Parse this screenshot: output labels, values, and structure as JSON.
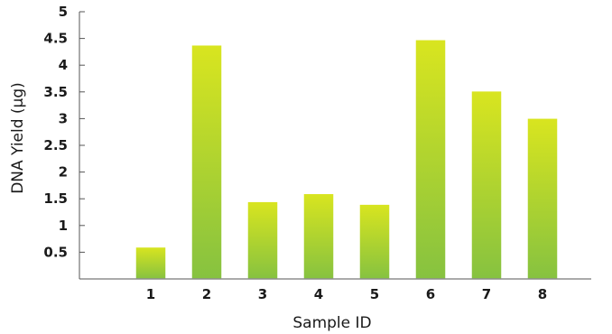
{
  "chart_data": {
    "type": "bar",
    "title": "",
    "xlabel": "Sample ID",
    "ylabel": "DNA Yield (µg)",
    "categories": [
      "1",
      "2",
      "3",
      "4",
      "5",
      "6",
      "7",
      "8"
    ],
    "values": [
      0.6,
      4.38,
      1.45,
      1.6,
      1.4,
      4.48,
      3.52,
      3.01
    ],
    "ylim": [
      0,
      5
    ],
    "yticks": [
      {
        "value": 0.5,
        "label": "0.5"
      },
      {
        "value": 1,
        "label": "1"
      },
      {
        "value": 1.5,
        "label": "1.5"
      },
      {
        "value": 2,
        "label": "2"
      },
      {
        "value": 2.5,
        "label": "2.5"
      },
      {
        "value": 3,
        "label": "3"
      },
      {
        "value": 3.5,
        "label": "3.5"
      },
      {
        "value": 4,
        "label": "4"
      },
      {
        "value": 4.5,
        "label": "4.5"
      },
      {
        "value": 5,
        "label": "5"
      }
    ],
    "grid": false,
    "legend": "none",
    "colors": {
      "bar_top": "#d9e51f",
      "bar_bottom": "#86c240",
      "axis": "#555555",
      "text": "#1a1a1a"
    }
  }
}
